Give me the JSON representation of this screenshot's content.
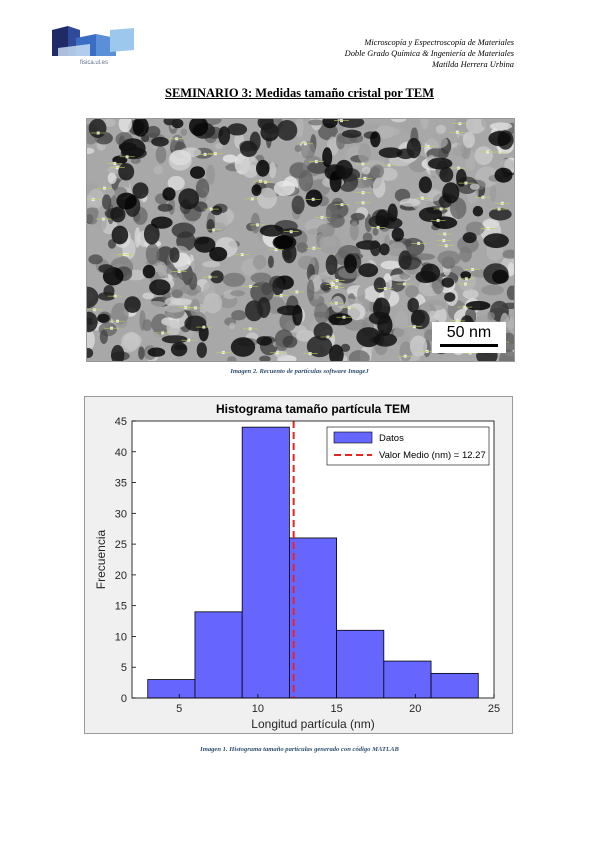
{
  "header": {
    "logo_text": "fisica.ul.es",
    "lines": [
      "Microscopía y Espectroscopía de Materiales",
      "Doble Grado Química & Ingeniería de Materiales",
      "Matilda Herrera Urbina"
    ]
  },
  "title": "SEMINARIO 3: Medidas tamaño cristal por TEM",
  "tem_image": {
    "scale_label": "50 nm",
    "caption": "Imagen 2. Recuento de partículas software ImageJ"
  },
  "chart_caption": "Imagen 1. Histograma tamaño partículas generado con código MATLAB",
  "chart_data": {
    "type": "bar",
    "title": "Histograma tamaño partícula TEM",
    "xlabel": "Longitud partícula (nm)",
    "ylabel": "Frecuencia",
    "xlim": [
      2,
      25
    ],
    "ylim": [
      0,
      45
    ],
    "xticks": [
      5,
      10,
      15,
      20,
      25
    ],
    "yticks": [
      0,
      5,
      10,
      15,
      20,
      25,
      30,
      35,
      40,
      45
    ],
    "bins": [
      {
        "x0": 3,
        "x1": 6,
        "value": 3
      },
      {
        "x0": 6,
        "x1": 9,
        "value": 14
      },
      {
        "x0": 9,
        "x1": 12,
        "value": 44
      },
      {
        "x0": 12,
        "x1": 15,
        "value": 26
      },
      {
        "x0": 15,
        "x1": 18,
        "value": 11
      },
      {
        "x0": 18,
        "x1": 21,
        "value": 6
      },
      {
        "x0": 21,
        "x1": 24,
        "value": 4
      }
    ],
    "mean_line": 12.27,
    "legend": [
      "Datos",
      "Valor Medio (nm) = 12.27"
    ],
    "legend_position": "top-right",
    "bar_color": "#6666ff",
    "mean_color": "#e8241f",
    "grid": false
  }
}
